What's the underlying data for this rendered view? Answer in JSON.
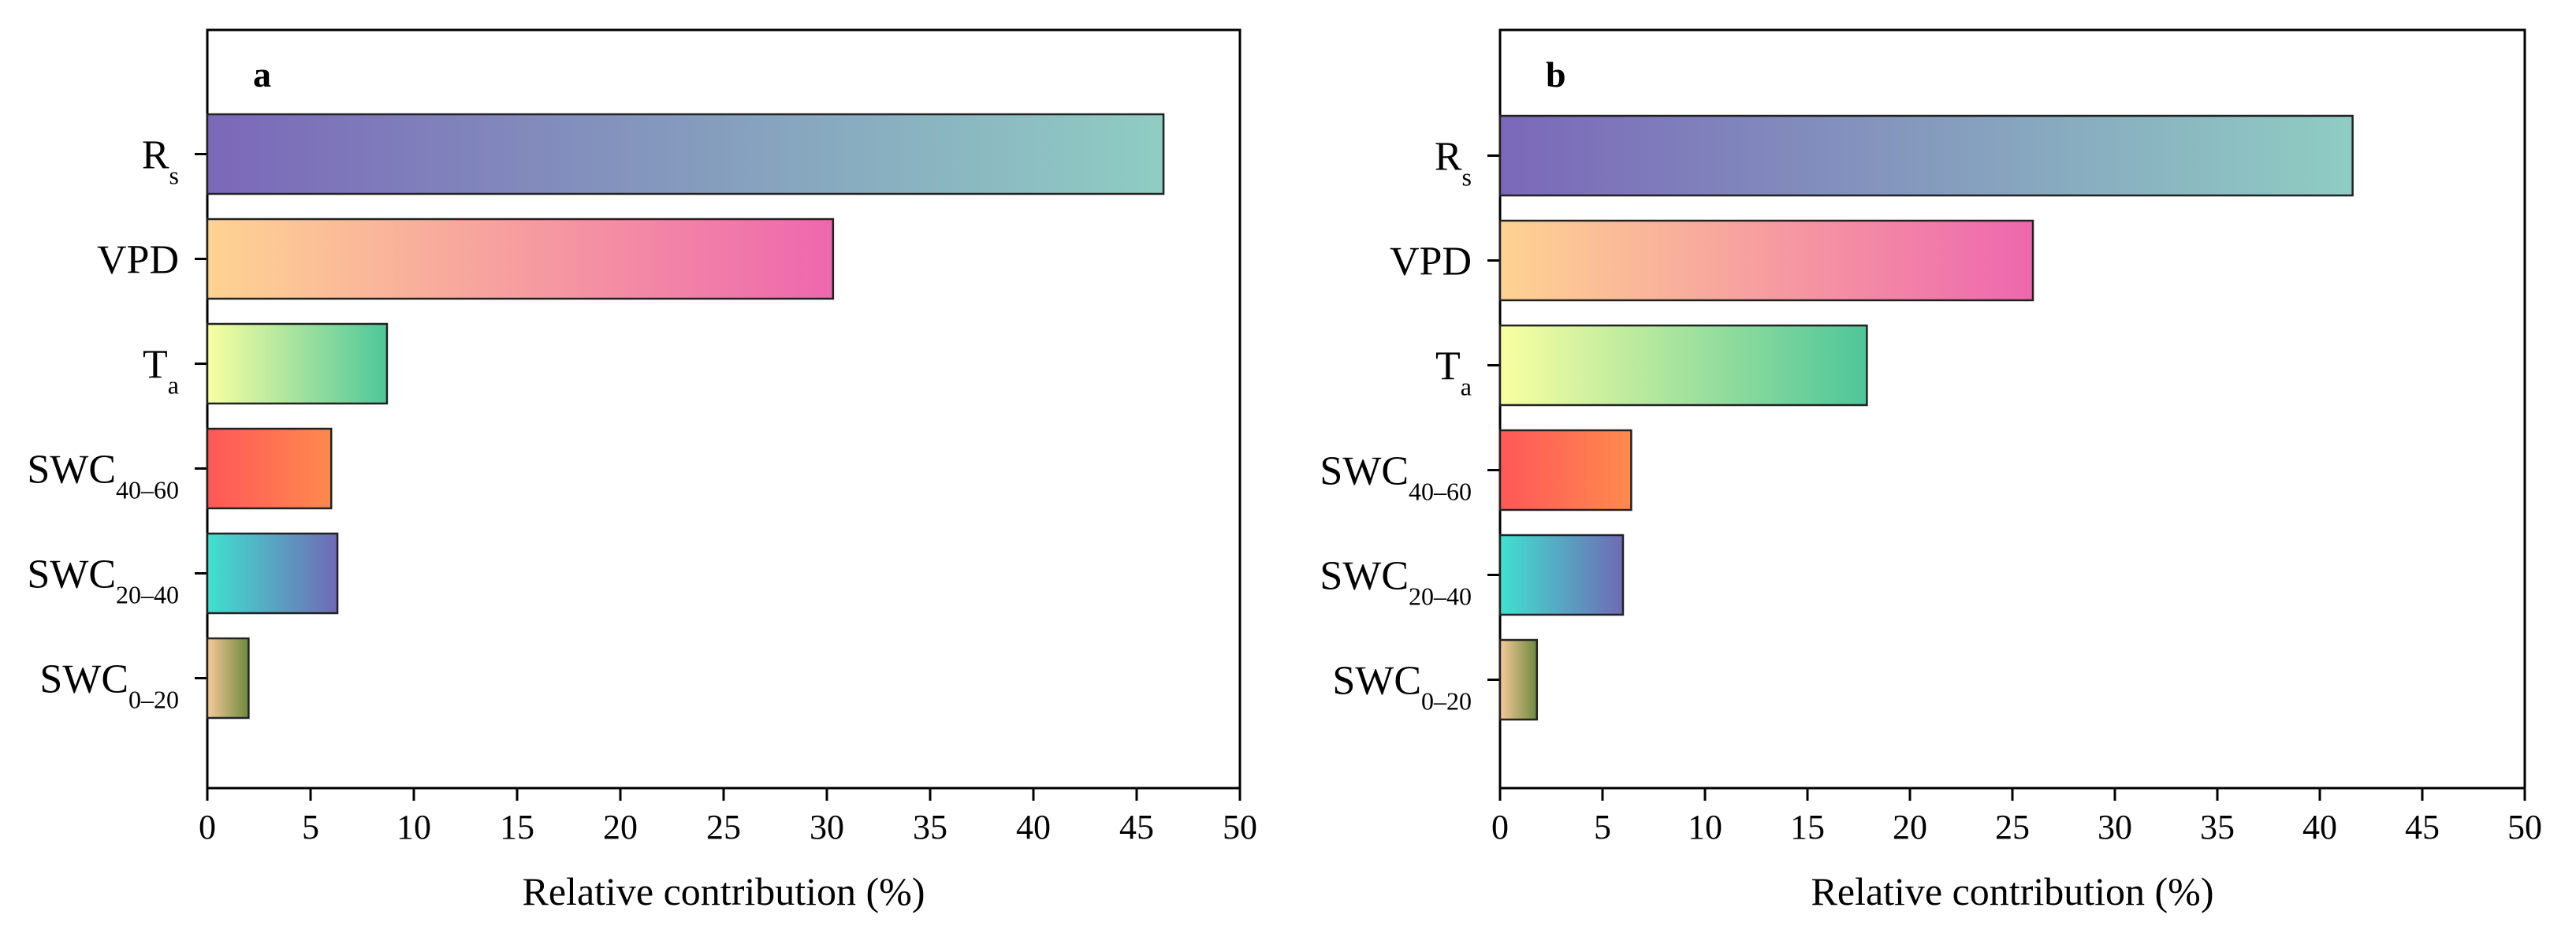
{
  "chart_data": [
    {
      "panel": "a",
      "type": "bar",
      "orientation": "horizontal",
      "title": "a",
      "xlabel": "Relative contribution (%)",
      "ylabel": "",
      "xlim": [
        0,
        50
      ],
      "xticks": [
        0,
        5,
        10,
        15,
        20,
        25,
        30,
        35,
        40,
        45,
        50
      ],
      "grid": false,
      "categories": [
        {
          "base": "R",
          "sub": "s"
        },
        {
          "base": "VPD",
          "sub": ""
        },
        {
          "base": "T",
          "sub": "a"
        },
        {
          "base": "SWC",
          "sub": "40–60"
        },
        {
          "base": "SWC",
          "sub": "20–40"
        },
        {
          "base": "SWC",
          "sub": "0–20"
        }
      ],
      "values": [
        46.3,
        30.3,
        8.7,
        6.0,
        6.3,
        2.0
      ]
    },
    {
      "panel": "b",
      "type": "bar",
      "orientation": "horizontal",
      "title": "b",
      "xlabel": "Relative contribution (%)",
      "ylabel": "",
      "xlim": [
        0,
        50
      ],
      "xticks": [
        0,
        5,
        10,
        15,
        20,
        25,
        30,
        35,
        40,
        45,
        50
      ],
      "grid": false,
      "categories": [
        {
          "base": "R",
          "sub": "s"
        },
        {
          "base": "VPD",
          "sub": ""
        },
        {
          "base": "T",
          "sub": "a"
        },
        {
          "base": "SWC",
          "sub": "40–60"
        },
        {
          "base": "SWC",
          "sub": "20–40"
        },
        {
          "base": "SWC",
          "sub": "0–20"
        }
      ],
      "values": [
        41.6,
        26.0,
        17.9,
        6.4,
        6.0,
        1.8
      ]
    }
  ],
  "bar_gradients": [
    [
      "#7b68b9",
      "#8fcdc3"
    ],
    [
      "#fed392",
      "#ee67ae"
    ],
    [
      "#faffa1",
      "#4ec69a"
    ],
    [
      "#ff5758",
      "#ff8a4e"
    ],
    [
      "#40e1cf",
      "#6f6ab5"
    ],
    [
      "#f6c99a",
      "#6d8a3c"
    ]
  ],
  "style": {
    "bar_stroke": "#222222",
    "axis_color": "#000000"
  }
}
